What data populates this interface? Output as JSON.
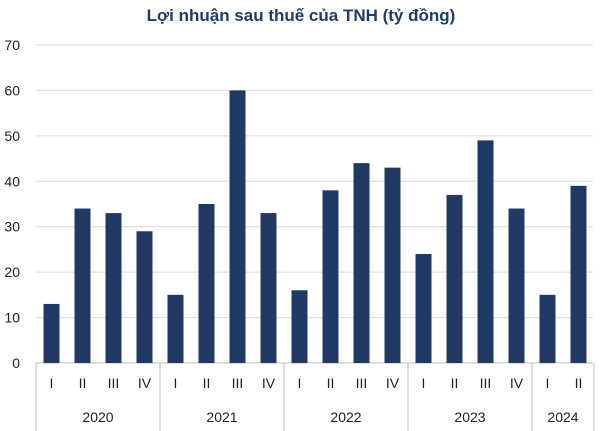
{
  "chart_data": {
    "type": "bar",
    "title": "Lợi nhuận sau thuế của TNH (tỷ đồng)",
    "xlabel": "",
    "ylabel": "",
    "ylim": [
      0,
      70
    ],
    "yticks": [
      0,
      10,
      20,
      30,
      40,
      50,
      60,
      70
    ],
    "grid": true,
    "legend": "none",
    "bar_color": "#1f3864",
    "groups": [
      {
        "year": "2020",
        "categories": [
          "I",
          "II",
          "III",
          "IV"
        ],
        "values": [
          13,
          34,
          33,
          29
        ]
      },
      {
        "year": "2021",
        "categories": [
          "I",
          "II",
          "III",
          "IV"
        ],
        "values": [
          15,
          35,
          60,
          33
        ]
      },
      {
        "year": "2022",
        "categories": [
          "I",
          "II",
          "III",
          "IV"
        ],
        "values": [
          16,
          38,
          44,
          43
        ]
      },
      {
        "year": "2023",
        "categories": [
          "I",
          "II",
          "III",
          "IV"
        ],
        "values": [
          24,
          37,
          49,
          34
        ]
      },
      {
        "year": "2024",
        "categories": [
          "I",
          "II"
        ],
        "values": [
          15,
          39
        ]
      }
    ]
  }
}
